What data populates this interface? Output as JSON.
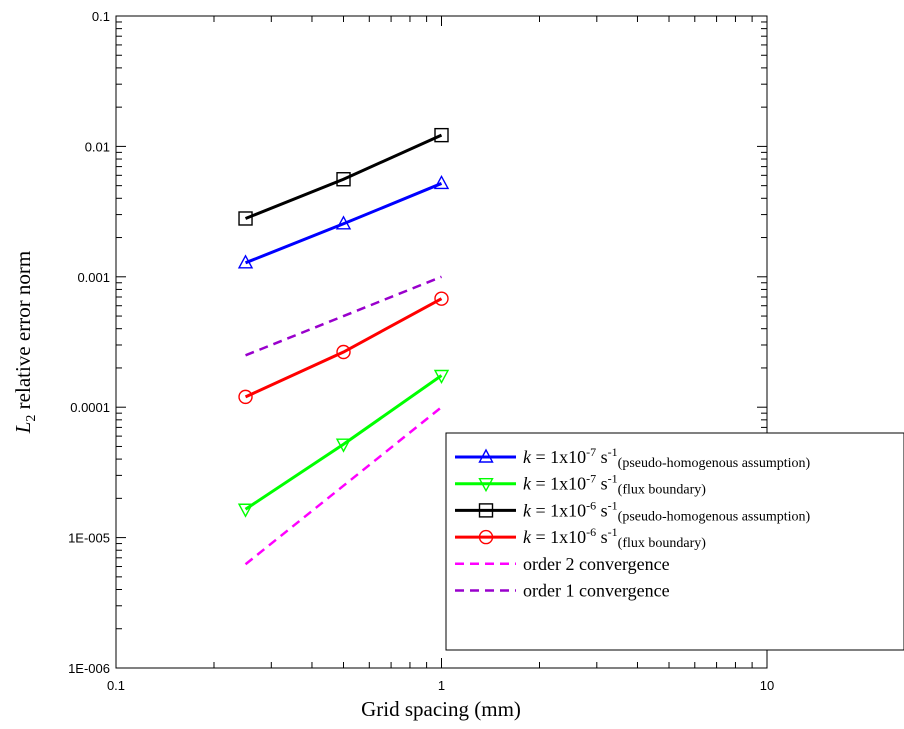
{
  "chart_data": {
    "type": "line",
    "x_scale": "log",
    "y_scale": "log",
    "xlabel": "Grid spacing (mm)",
    "ylabel": {
      "var": "L",
      "sub": "2",
      "text": " relative error norm"
    },
    "xlim": [
      0.1,
      10
    ],
    "ylim": [
      1e-06,
      0.1
    ],
    "x_ticks": [
      {
        "value": 0.1,
        "label": "0.1"
      },
      {
        "value": 1,
        "label": "1"
      },
      {
        "value": 10,
        "label": "10"
      }
    ],
    "y_ticks": [
      {
        "value": 0.1,
        "label": "0.1"
      },
      {
        "value": 0.01,
        "label": "0.01"
      },
      {
        "value": 0.001,
        "label": "0.001"
      },
      {
        "value": 0.0001,
        "label": "0.0001"
      },
      {
        "value": 1e-05,
        "label": "1E-005"
      },
      {
        "value": 1e-06,
        "label": "1E-006"
      }
    ],
    "grid": false,
    "legend_position": "bottom-right",
    "series": [
      {
        "label": {
          "var": "k",
          "eq": " = 1x10",
          "exp": "-7",
          "unit": " s",
          "unit_exp": "-1",
          "sub": "(pseudo-homogenous assumption)"
        },
        "color": "#0000ff",
        "marker": "triangle-up",
        "dash": "solid",
        "x": [
          0.25,
          0.5,
          1
        ],
        "y": [
          0.00128,
          0.00255,
          0.0052
        ]
      },
      {
        "label": {
          "var": "k",
          "eq": " = 1x10",
          "exp": "-7",
          "unit": " s",
          "unit_exp": "-1",
          "sub": "(flux boundary)"
        },
        "color": "#00ff00",
        "marker": "triangle-down",
        "dash": "solid",
        "x": [
          0.25,
          0.5,
          1
        ],
        "y": [
          1.65e-05,
          5.2e-05,
          0.000175
        ]
      },
      {
        "label": {
          "var": "k",
          "eq": " = 1x10",
          "exp": "-6",
          "unit": " s",
          "unit_exp": "-1",
          "sub": "(pseudo-homogenous assumption)"
        },
        "color": "#000000",
        "marker": "square",
        "dash": "solid",
        "x": [
          0.25,
          0.5,
          1
        ],
        "y": [
          0.0028,
          0.0056,
          0.0122
        ]
      },
      {
        "label": {
          "var": "k",
          "eq": " = 1x10",
          "exp": "-6",
          "unit": " s",
          "unit_exp": "-1",
          "sub": "(flux boundary)"
        },
        "color": "#ff0000",
        "marker": "circle",
        "dash": "solid",
        "x": [
          0.25,
          0.5,
          1
        ],
        "y": [
          0.00012,
          0.000265,
          0.00068
        ]
      },
      {
        "label": {
          "text": "order 2 convergence"
        },
        "color": "#ff00ff",
        "marker": "none",
        "dash": "dashed",
        "x": [
          0.25,
          0.5,
          1
        ],
        "y": [
          6.25e-06,
          2.5e-05,
          0.0001
        ]
      },
      {
        "label": {
          "text": "order 1 convergence"
        },
        "color": "#9900cc",
        "marker": "none",
        "dash": "dashed",
        "x": [
          0.25,
          0.5,
          1
        ],
        "y": [
          0.00025,
          0.0005,
          0.001
        ]
      }
    ]
  }
}
